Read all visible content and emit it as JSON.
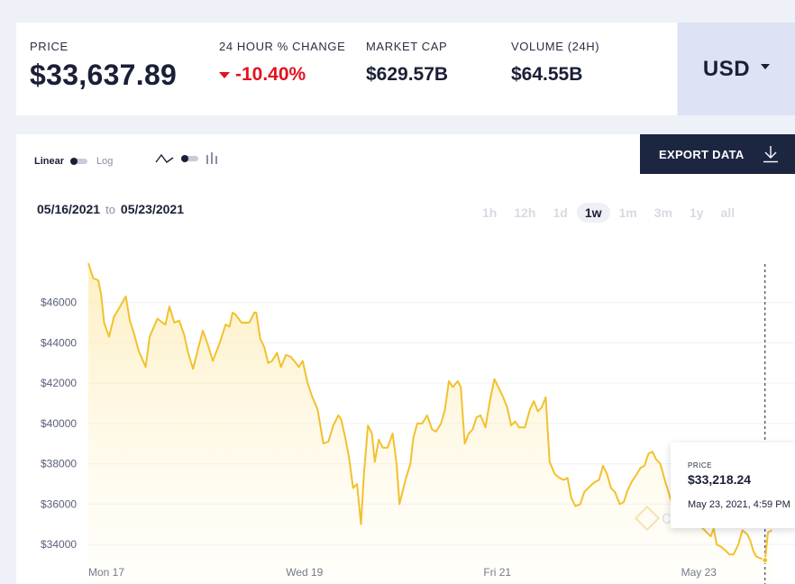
{
  "stats": {
    "price": {
      "label": "PRICE",
      "value": "$33,637.89"
    },
    "change": {
      "label": "24 HOUR % CHANGE",
      "value": "-10.40%"
    },
    "market_cap": {
      "label": "MARKET CAP",
      "value": "$629.57B"
    },
    "volume": {
      "label": "VOLUME (24H)",
      "value": "$64.55B"
    }
  },
  "currency": {
    "selected": "USD"
  },
  "controls": {
    "scale_linear": "Linear",
    "scale_log": "Log",
    "export_label": "EXPORT DATA",
    "date_from": "05/16/2021",
    "date_to_word": "to",
    "date_to": "05/23/2021",
    "ranges": [
      "1h",
      "12h",
      "1d",
      "1w",
      "1m",
      "3m",
      "1y",
      "all"
    ],
    "active_range": "1w"
  },
  "tooltip": {
    "label": "PRICE",
    "value": "$33,218.24",
    "time": "May 23, 2021, 4:59 PM"
  },
  "watermark": "coindesk",
  "colors": {
    "line": "#f2c12e",
    "negative": "#e3121f",
    "navy": "#1d2640"
  },
  "chart_data": {
    "type": "area",
    "title": "",
    "xlabel": "",
    "ylabel": "",
    "ylim": [
      33300,
      48100
    ],
    "x_ticks": [
      {
        "label": "Mon 17",
        "x": 0
      },
      {
        "label": "Wed 19",
        "x": 2
      },
      {
        "label": "Fri 21",
        "x": 4
      },
      {
        "label": "May 23",
        "x": 6
      }
    ],
    "y_ticks": [
      34000,
      36000,
      38000,
      40000,
      42000,
      44000,
      46000
    ],
    "y_tick_labels": [
      "$34000",
      "$36000",
      "$38000",
      "$40000",
      "$42000",
      "$44000",
      "$46000"
    ],
    "x_unit": "days since Mon 17 (00:00)",
    "series": [
      {
        "name": "Price",
        "points": [
          [
            0.0,
            47950
          ],
          [
            0.05,
            47200
          ],
          [
            0.1,
            47100
          ],
          [
            0.13,
            46400
          ],
          [
            0.16,
            45000
          ],
          [
            0.21,
            44300
          ],
          [
            0.26,
            45300
          ],
          [
            0.31,
            45700
          ],
          [
            0.38,
            46300
          ],
          [
            0.42,
            45100
          ],
          [
            0.46,
            44500
          ],
          [
            0.51,
            43600
          ],
          [
            0.58,
            42800
          ],
          [
            0.62,
            44300
          ],
          [
            0.7,
            45200
          ],
          [
            0.75,
            45000
          ],
          [
            0.78,
            44900
          ],
          [
            0.82,
            45800
          ],
          [
            0.87,
            45000
          ],
          [
            0.92,
            45100
          ],
          [
            0.97,
            44400
          ],
          [
            1.01,
            43500
          ],
          [
            1.06,
            42700
          ],
          [
            1.11,
            43700
          ],
          [
            1.16,
            44600
          ],
          [
            1.21,
            43900
          ],
          [
            1.26,
            43100
          ],
          [
            1.33,
            44000
          ],
          [
            1.39,
            44900
          ],
          [
            1.43,
            44800
          ],
          [
            1.46,
            45500
          ],
          [
            1.49,
            45400
          ],
          [
            1.55,
            45000
          ],
          [
            1.63,
            45000
          ],
          [
            1.68,
            45500
          ],
          [
            1.7,
            45500
          ],
          [
            1.74,
            44200
          ],
          [
            1.78,
            43800
          ],
          [
            1.82,
            43000
          ],
          [
            1.86,
            43100
          ],
          [
            1.91,
            43500
          ],
          [
            1.95,
            42800
          ],
          [
            2.0,
            43400
          ],
          [
            2.05,
            43300
          ],
          [
            2.1,
            43000
          ],
          [
            2.13,
            42800
          ],
          [
            2.17,
            43100
          ],
          [
            2.22,
            42000
          ],
          [
            2.26,
            41400
          ],
          [
            2.32,
            40700
          ],
          [
            2.38,
            39000
          ],
          [
            2.43,
            39100
          ],
          [
            2.48,
            39900
          ],
          [
            2.53,
            40400
          ],
          [
            2.56,
            40200
          ],
          [
            2.6,
            39300
          ],
          [
            2.64,
            38300
          ],
          [
            2.68,
            36800
          ],
          [
            2.72,
            37000
          ],
          [
            2.76,
            35000
          ],
          [
            2.79,
            37500
          ],
          [
            2.83,
            39900
          ],
          [
            2.87,
            39500
          ],
          [
            2.9,
            38100
          ],
          [
            2.94,
            39200
          ],
          [
            2.98,
            38800
          ],
          [
            3.03,
            38800
          ],
          [
            3.08,
            39500
          ],
          [
            3.12,
            38000
          ],
          [
            3.15,
            36000
          ],
          [
            3.21,
            37200
          ],
          [
            3.26,
            38000
          ],
          [
            3.29,
            39300
          ],
          [
            3.33,
            40000
          ],
          [
            3.38,
            40000
          ],
          [
            3.43,
            40400
          ],
          [
            3.48,
            39700
          ],
          [
            3.52,
            39600
          ],
          [
            3.57,
            40000
          ],
          [
            3.61,
            40700
          ],
          [
            3.65,
            42100
          ],
          [
            3.69,
            41800
          ],
          [
            3.74,
            42100
          ],
          [
            3.77,
            41800
          ],
          [
            3.81,
            39000
          ],
          [
            3.85,
            39500
          ],
          [
            3.89,
            39700
          ],
          [
            3.93,
            40300
          ],
          [
            3.97,
            40400
          ],
          [
            4.02,
            39800
          ],
          [
            4.06,
            41000
          ],
          [
            4.11,
            42200
          ],
          [
            4.15,
            41800
          ],
          [
            4.19,
            41400
          ],
          [
            4.24,
            40800
          ],
          [
            4.28,
            39900
          ],
          [
            4.32,
            40100
          ],
          [
            4.36,
            39800
          ],
          [
            4.42,
            39800
          ],
          [
            4.47,
            40700
          ],
          [
            4.51,
            41100
          ],
          [
            4.55,
            40600
          ],
          [
            4.59,
            40800
          ],
          [
            4.63,
            41300
          ],
          [
            4.67,
            38100
          ],
          [
            4.72,
            37500
          ],
          [
            4.77,
            37300
          ],
          [
            4.81,
            37200
          ],
          [
            4.85,
            37300
          ],
          [
            4.89,
            36300
          ],
          [
            4.93,
            35900
          ],
          [
            4.98,
            36000
          ],
          [
            5.02,
            36600
          ],
          [
            5.08,
            36900
          ],
          [
            5.13,
            37100
          ],
          [
            5.17,
            37200
          ],
          [
            5.21,
            37900
          ],
          [
            5.25,
            37500
          ],
          [
            5.29,
            36800
          ],
          [
            5.33,
            36600
          ],
          [
            5.38,
            36000
          ],
          [
            5.42,
            36100
          ],
          [
            5.46,
            36700
          ],
          [
            5.5,
            37100
          ],
          [
            5.54,
            37400
          ],
          [
            5.59,
            37800
          ],
          [
            5.63,
            37900
          ],
          [
            5.67,
            38500
          ],
          [
            5.71,
            38600
          ],
          [
            5.75,
            38200
          ],
          [
            5.79,
            38000
          ],
          [
            5.84,
            37100
          ],
          [
            5.88,
            36500
          ],
          [
            5.92,
            35800
          ],
          [
            5.97,
            35600
          ],
          [
            6.01,
            35500
          ],
          [
            6.06,
            35400
          ],
          [
            6.1,
            35600
          ],
          [
            6.14,
            35100
          ],
          [
            6.18,
            35000
          ],
          [
            6.22,
            34800
          ],
          [
            6.26,
            34600
          ],
          [
            6.3,
            34400
          ],
          [
            6.33,
            34800
          ],
          [
            6.36,
            34000
          ],
          [
            6.4,
            33900
          ],
          [
            6.45,
            33700
          ],
          [
            6.49,
            33500
          ],
          [
            6.53,
            33500
          ],
          [
            6.58,
            34000
          ],
          [
            6.62,
            34700
          ],
          [
            6.67,
            34500
          ],
          [
            6.7,
            34200
          ],
          [
            6.73,
            33700
          ],
          [
            6.76,
            33400
          ],
          [
            6.81,
            33300
          ],
          [
            6.85,
            33218.24
          ],
          [
            6.88,
            34600
          ],
          [
            6.92,
            34700
          ]
        ]
      }
    ],
    "highlight": {
      "x": 6.85,
      "y": 33218.24
    }
  }
}
